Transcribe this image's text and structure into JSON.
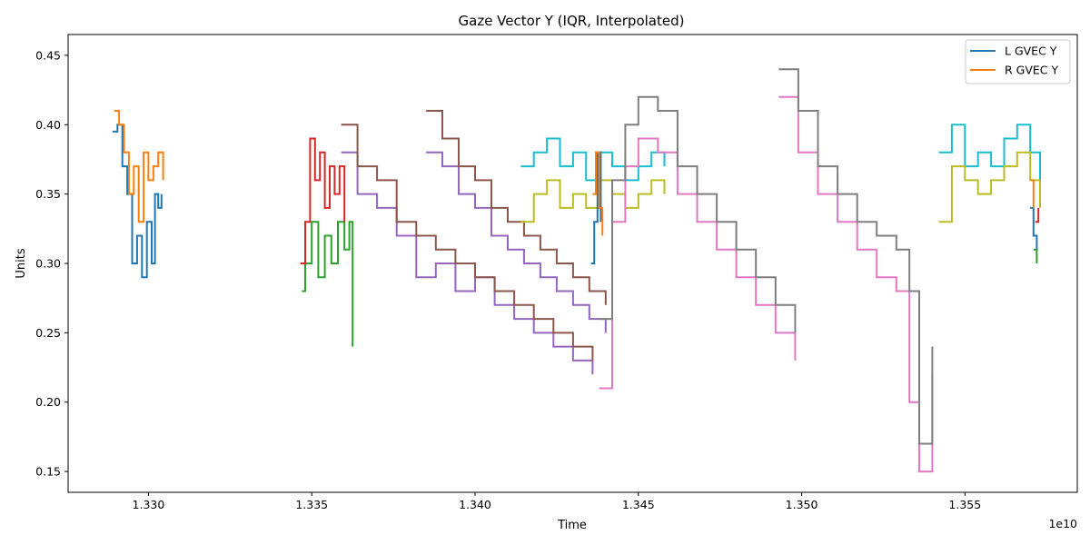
{
  "chart_data": {
    "type": "line",
    "title": "Gaze Vector Y (IQR, Interpolated)",
    "xlabel": "Time",
    "ylabel": "Units",
    "x_offset_label": "1e10",
    "xlim": [
      1.32754,
      1.35844
    ],
    "ylim": [
      0.135,
      0.465
    ],
    "x_ticks": [
      1.33,
      1.335,
      1.34,
      1.345,
      1.35,
      1.355
    ],
    "x_tick_labels": [
      "1.330",
      "1.335",
      "1.340",
      "1.345",
      "1.350",
      "1.355"
    ],
    "y_ticks": [
      0.15,
      0.2,
      0.25,
      0.3,
      0.35,
      0.4,
      0.45
    ],
    "y_tick_labels": [
      "0.15",
      "0.20",
      "0.25",
      "0.30",
      "0.35",
      "0.40",
      "0.45"
    ],
    "grid": false,
    "legend": {
      "position": "top-right",
      "entries": [
        {
          "label": "L GVEC Y",
          "color": "#1f77b4"
        },
        {
          "label": "R GVEC Y",
          "color": "#ff7f0e"
        }
      ]
    },
    "segments": [
      {
        "color": "#1f77b4",
        "points": [
          [
            1.3289,
            0.395
          ],
          [
            1.32905,
            0.4
          ],
          [
            1.3292,
            0.37
          ],
          [
            1.32935,
            0.35
          ],
          [
            1.3295,
            0.3
          ],
          [
            1.32965,
            0.32
          ],
          [
            1.3298,
            0.29
          ],
          [
            1.32995,
            0.33
          ],
          [
            1.3301,
            0.3
          ],
          [
            1.3302,
            0.35
          ],
          [
            1.3303,
            0.34
          ],
          [
            1.3304,
            0.35
          ]
        ]
      },
      {
        "color": "#ff7f0e",
        "points": [
          [
            1.32895,
            0.41
          ],
          [
            1.3291,
            0.4
          ],
          [
            1.32925,
            0.38
          ],
          [
            1.3294,
            0.35
          ],
          [
            1.32955,
            0.37
          ],
          [
            1.3297,
            0.33
          ],
          [
            1.32985,
            0.38
          ],
          [
            1.33,
            0.36
          ],
          [
            1.33015,
            0.37
          ],
          [
            1.3303,
            0.38
          ],
          [
            1.33045,
            0.36
          ]
        ]
      },
      {
        "color": "#2ca02c",
        "points": [
          [
            1.3347,
            0.28
          ],
          [
            1.3348,
            0.3
          ],
          [
            1.335,
            0.33
          ],
          [
            1.3352,
            0.29
          ],
          [
            1.3354,
            0.32
          ],
          [
            1.3356,
            0.3
          ],
          [
            1.3358,
            0.33
          ],
          [
            1.336,
            0.31
          ],
          [
            1.33615,
            0.33
          ],
          [
            1.33625,
            0.24
          ]
        ]
      },
      {
        "color": "#d62728",
        "points": [
          [
            1.33465,
            0.3
          ],
          [
            1.3348,
            0.33
          ],
          [
            1.33495,
            0.39
          ],
          [
            1.3351,
            0.36
          ],
          [
            1.33525,
            0.38
          ],
          [
            1.3354,
            0.34
          ],
          [
            1.33555,
            0.37
          ],
          [
            1.3357,
            0.35
          ],
          [
            1.33585,
            0.37
          ],
          [
            1.336,
            0.33
          ]
        ]
      },
      {
        "color": "#9467bd",
        "points": [
          [
            1.3359,
            0.38
          ],
          [
            1.3364,
            0.35
          ],
          [
            1.337,
            0.34
          ],
          [
            1.3376,
            0.32
          ],
          [
            1.3382,
            0.29
          ],
          [
            1.3388,
            0.3
          ],
          [
            1.3394,
            0.28
          ],
          [
            1.34,
            0.29
          ],
          [
            1.3406,
            0.27
          ],
          [
            1.3412,
            0.26
          ],
          [
            1.3418,
            0.25
          ],
          [
            1.3424,
            0.24
          ],
          [
            1.343,
            0.23
          ],
          [
            1.3436,
            0.22
          ]
        ]
      },
      {
        "color": "#8c564b",
        "points": [
          [
            1.3359,
            0.4
          ],
          [
            1.3364,
            0.37
          ],
          [
            1.337,
            0.36
          ],
          [
            1.3376,
            0.33
          ],
          [
            1.3382,
            0.32
          ],
          [
            1.3388,
            0.31
          ],
          [
            1.3394,
            0.3
          ],
          [
            1.34,
            0.29
          ],
          [
            1.3406,
            0.28
          ],
          [
            1.3412,
            0.27
          ],
          [
            1.3418,
            0.26
          ],
          [
            1.3424,
            0.25
          ],
          [
            1.343,
            0.24
          ],
          [
            1.3436,
            0.23
          ]
        ]
      },
      {
        "color": "#9467bd",
        "points": [
          [
            1.3385,
            0.38
          ],
          [
            1.339,
            0.37
          ],
          [
            1.3395,
            0.35
          ],
          [
            1.34,
            0.34
          ],
          [
            1.3405,
            0.32
          ],
          [
            1.341,
            0.31
          ],
          [
            1.3415,
            0.3
          ],
          [
            1.342,
            0.29
          ],
          [
            1.3425,
            0.28
          ],
          [
            1.343,
            0.27
          ],
          [
            1.3435,
            0.26
          ],
          [
            1.344,
            0.25
          ]
        ]
      },
      {
        "color": "#8c564b",
        "points": [
          [
            1.3385,
            0.41
          ],
          [
            1.339,
            0.39
          ],
          [
            1.3395,
            0.37
          ],
          [
            1.34,
            0.36
          ],
          [
            1.3405,
            0.34
          ],
          [
            1.341,
            0.33
          ],
          [
            1.3415,
            0.32
          ],
          [
            1.342,
            0.31
          ],
          [
            1.3425,
            0.3
          ],
          [
            1.343,
            0.29
          ],
          [
            1.3435,
            0.28
          ],
          [
            1.344,
            0.27
          ]
        ]
      },
      {
        "color": "#17becf",
        "points": [
          [
            1.3414,
            0.37
          ],
          [
            1.3418,
            0.38
          ],
          [
            1.3422,
            0.39
          ],
          [
            1.3426,
            0.37
          ],
          [
            1.343,
            0.38
          ],
          [
            1.3434,
            0.36
          ],
          [
            1.3438,
            0.38
          ],
          [
            1.3442,
            0.37
          ],
          [
            1.3446,
            0.36
          ],
          [
            1.345,
            0.37
          ],
          [
            1.3454,
            0.38
          ],
          [
            1.3458,
            0.37
          ]
        ]
      },
      {
        "color": "#bcbd22",
        "points": [
          [
            1.3414,
            0.33
          ],
          [
            1.3418,
            0.35
          ],
          [
            1.3422,
            0.36
          ],
          [
            1.3426,
            0.34
          ],
          [
            1.343,
            0.35
          ],
          [
            1.3434,
            0.34
          ],
          [
            1.3438,
            0.36
          ],
          [
            1.3442,
            0.35
          ],
          [
            1.3446,
            0.34
          ],
          [
            1.345,
            0.35
          ],
          [
            1.3454,
            0.36
          ],
          [
            1.3458,
            0.35
          ]
        ]
      },
      {
        "color": "#1f77b4",
        "points": [
          [
            1.34355,
            0.3
          ],
          [
            1.34365,
            0.33
          ],
          [
            1.34375,
            0.38
          ],
          [
            1.34385,
            0.33
          ]
        ]
      },
      {
        "color": "#ff7f0e",
        "points": [
          [
            1.3436,
            0.35
          ],
          [
            1.3437,
            0.38
          ],
          [
            1.3438,
            0.34
          ],
          [
            1.3439,
            0.32
          ]
        ]
      },
      {
        "color": "#e377c2",
        "points": [
          [
            1.3438,
            0.21
          ],
          [
            1.3442,
            0.33
          ],
          [
            1.3446,
            0.37
          ],
          [
            1.345,
            0.39
          ],
          [
            1.3456,
            0.38
          ],
          [
            1.3462,
            0.35
          ],
          [
            1.3468,
            0.33
          ],
          [
            1.3474,
            0.31
          ],
          [
            1.348,
            0.29
          ],
          [
            1.3486,
            0.27
          ],
          [
            1.3492,
            0.25
          ],
          [
            1.3498,
            0.23
          ]
        ]
      },
      {
        "color": "#7f7f7f",
        "points": [
          [
            1.3438,
            0.26
          ],
          [
            1.3442,
            0.36
          ],
          [
            1.3446,
            0.4
          ],
          [
            1.345,
            0.42
          ],
          [
            1.3456,
            0.41
          ],
          [
            1.3462,
            0.37
          ],
          [
            1.3468,
            0.35
          ],
          [
            1.3474,
            0.33
          ],
          [
            1.348,
            0.31
          ],
          [
            1.3486,
            0.29
          ],
          [
            1.3492,
            0.27
          ],
          [
            1.3498,
            0.25
          ]
        ]
      },
      {
        "color": "#e377c2",
        "points": [
          [
            1.3493,
            0.42
          ],
          [
            1.3499,
            0.38
          ],
          [
            1.3505,
            0.35
          ],
          [
            1.3511,
            0.33
          ],
          [
            1.3517,
            0.31
          ],
          [
            1.3523,
            0.29
          ],
          [
            1.3529,
            0.28
          ],
          [
            1.3533,
            0.2
          ],
          [
            1.3536,
            0.15
          ],
          [
            1.354,
            0.22
          ]
        ]
      },
      {
        "color": "#7f7f7f",
        "points": [
          [
            1.3493,
            0.44
          ],
          [
            1.3499,
            0.41
          ],
          [
            1.3505,
            0.37
          ],
          [
            1.3511,
            0.35
          ],
          [
            1.3517,
            0.33
          ],
          [
            1.3523,
            0.32
          ],
          [
            1.3529,
            0.31
          ],
          [
            1.3533,
            0.28
          ],
          [
            1.3536,
            0.17
          ],
          [
            1.354,
            0.24
          ]
        ]
      },
      {
        "color": "#17becf",
        "points": [
          [
            1.3542,
            0.38
          ],
          [
            1.3546,
            0.4
          ],
          [
            1.355,
            0.37
          ],
          [
            1.3554,
            0.38
          ],
          [
            1.3558,
            0.37
          ],
          [
            1.3562,
            0.39
          ],
          [
            1.3566,
            0.4
          ],
          [
            1.357,
            0.38
          ],
          [
            1.3573,
            0.36
          ]
        ]
      },
      {
        "color": "#bcbd22",
        "points": [
          [
            1.3542,
            0.33
          ],
          [
            1.3546,
            0.37
          ],
          [
            1.355,
            0.36
          ],
          [
            1.3554,
            0.35
          ],
          [
            1.3558,
            0.36
          ],
          [
            1.3562,
            0.37
          ],
          [
            1.3566,
            0.38
          ],
          [
            1.357,
            0.36
          ],
          [
            1.3573,
            0.34
          ]
        ]
      },
      {
        "color": "#1f77b4",
        "points": [
          [
            1.357,
            0.34
          ],
          [
            1.3571,
            0.32
          ],
          [
            1.3572,
            0.31
          ]
        ]
      },
      {
        "color": "#ff7f0e",
        "points": [
          [
            1.357,
            0.36
          ],
          [
            1.3571,
            0.34
          ]
        ]
      },
      {
        "color": "#2ca02c",
        "points": [
          [
            1.3571,
            0.31
          ],
          [
            1.3572,
            0.3
          ]
        ]
      },
      {
        "color": "#d62728",
        "points": [
          [
            1.35715,
            0.33
          ],
          [
            1.35725,
            0.34
          ]
        ]
      }
    ]
  }
}
